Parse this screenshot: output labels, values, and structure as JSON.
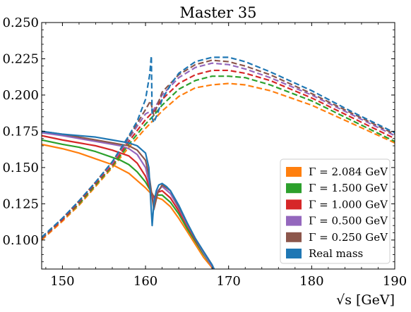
{
  "chart_data": {
    "type": "line",
    "title": "Master 35",
    "xlabel": "√s [GeV]",
    "ylabel": "",
    "xlim": [
      147.5,
      190
    ],
    "ylim": [
      0.08,
      0.25
    ],
    "grid": false,
    "legend_position": "bottom-right",
    "xticks": [
      150,
      160,
      170,
      180,
      190
    ],
    "xtick_labels": [
      "150",
      "160",
      "170",
      "180",
      "190"
    ],
    "yticks": [
      0.1,
      0.125,
      0.15,
      0.175,
      0.2,
      0.225,
      0.25
    ],
    "ytick_labels": [
      "0.100",
      "0.125",
      "0.150",
      "0.175",
      "0.200",
      "0.225",
      "0.250"
    ],
    "legend": [
      {
        "label": "Γ = 2.084 GeV",
        "color": "#ff7f0e"
      },
      {
        "label": "Γ = 1.500 GeV",
        "color": "#2ca02c"
      },
      {
        "label": "Γ = 1.000 GeV",
        "color": "#d62728"
      },
      {
        "label": "Γ = 0.500 GeV",
        "color": "#9467bd"
      },
      {
        "label": "Γ = 0.250 GeV",
        "color": "#8c564b"
      },
      {
        "label": "Real mass",
        "color": "#1f77b4"
      }
    ],
    "series": [
      {
        "name": "Γ = 2.084 GeV",
        "part": "solid",
        "color": "#ff7f0e",
        "style": "solid",
        "x": [
          147.5,
          150,
          152,
          154,
          156,
          157,
          158,
          159,
          160,
          160.5,
          161,
          161.5,
          162,
          163,
          164,
          165,
          166,
          167,
          168,
          168.5
        ],
        "y": [
          0.166,
          0.163,
          0.16,
          0.156,
          0.152,
          0.149,
          0.146,
          0.141,
          0.136,
          0.133,
          0.13,
          0.129,
          0.128,
          0.123,
          0.115,
          0.106,
          0.097,
          0.088,
          0.081,
          0.077
        ]
      },
      {
        "name": "Γ = 2.084 GeV",
        "part": "dashed",
        "color": "#ff7f0e",
        "style": "dashed",
        "x": [
          147.5,
          150,
          152,
          154,
          156,
          158,
          160,
          161,
          162,
          164,
          166,
          168,
          170,
          172,
          175,
          180,
          185,
          190
        ],
        "y": [
          0.1,
          0.113,
          0.124,
          0.137,
          0.15,
          0.164,
          0.177,
          0.183,
          0.189,
          0.199,
          0.205,
          0.207,
          0.208,
          0.207,
          0.203,
          0.193,
          0.18,
          0.167
        ]
      },
      {
        "name": "Γ = 1.500 GeV",
        "part": "solid",
        "color": "#2ca02c",
        "style": "solid",
        "x": [
          147.5,
          150,
          152,
          154,
          156,
          157,
          158,
          159,
          160,
          160.5,
          161,
          161.5,
          162,
          163,
          164,
          165,
          166,
          167,
          168,
          168.5
        ],
        "y": [
          0.169,
          0.166,
          0.164,
          0.161,
          0.157,
          0.155,
          0.152,
          0.147,
          0.14,
          0.135,
          0.13,
          0.131,
          0.131,
          0.126,
          0.118,
          0.108,
          0.099,
          0.09,
          0.082,
          0.077
        ]
      },
      {
        "name": "Γ = 1.500 GeV",
        "part": "dashed",
        "color": "#2ca02c",
        "style": "dashed",
        "x": [
          147.5,
          150,
          152,
          154,
          156,
          158,
          160,
          161,
          162,
          164,
          166,
          168,
          170,
          172,
          175,
          180,
          185,
          190
        ],
        "y": [
          0.101,
          0.114,
          0.125,
          0.138,
          0.151,
          0.166,
          0.18,
          0.186,
          0.193,
          0.204,
          0.21,
          0.213,
          0.213,
          0.212,
          0.207,
          0.196,
          0.182,
          0.168
        ]
      },
      {
        "name": "Γ = 1.000 GeV",
        "part": "solid",
        "color": "#d62728",
        "style": "solid",
        "x": [
          147.5,
          150,
          152,
          154,
          156,
          157,
          158,
          159,
          160,
          160.5,
          161,
          161.5,
          162,
          163,
          164,
          165,
          166,
          167,
          168,
          168.5
        ],
        "y": [
          0.172,
          0.169,
          0.167,
          0.165,
          0.162,
          0.16,
          0.158,
          0.153,
          0.144,
          0.136,
          0.129,
          0.133,
          0.134,
          0.129,
          0.12,
          0.11,
          0.1,
          0.091,
          0.082,
          0.077
        ]
      },
      {
        "name": "Γ = 1.000 GeV",
        "part": "dashed",
        "color": "#d62728",
        "style": "dashed",
        "x": [
          147.5,
          150,
          152,
          154,
          156,
          158,
          160,
          161,
          162,
          164,
          166,
          168,
          170,
          172,
          175,
          180,
          185,
          190
        ],
        "y": [
          0.101,
          0.114,
          0.126,
          0.139,
          0.152,
          0.168,
          0.183,
          0.189,
          0.197,
          0.208,
          0.214,
          0.217,
          0.217,
          0.215,
          0.21,
          0.198,
          0.184,
          0.17
        ]
      },
      {
        "name": "Γ = 0.500 GeV",
        "part": "solid",
        "color": "#9467bd",
        "style": "solid",
        "x": [
          147.5,
          150,
          152,
          154,
          156,
          157,
          158,
          159,
          160,
          160.5,
          161,
          161.5,
          162,
          163,
          164,
          165,
          166,
          167,
          168,
          168.5
        ],
        "y": [
          0.174,
          0.172,
          0.17,
          0.168,
          0.166,
          0.165,
          0.163,
          0.159,
          0.15,
          0.138,
          0.126,
          0.134,
          0.137,
          0.132,
          0.122,
          0.111,
          0.101,
          0.091,
          0.082,
          0.077
        ]
      },
      {
        "name": "Γ = 0.500 GeV",
        "part": "dashed",
        "color": "#9467bd",
        "style": "dashed",
        "x": [
          147.5,
          150,
          152,
          154,
          156,
          158,
          160,
          161,
          162,
          164,
          166,
          168,
          170,
          172,
          175,
          180,
          185,
          190
        ],
        "y": [
          0.101,
          0.115,
          0.127,
          0.14,
          0.153,
          0.17,
          0.187,
          0.19,
          0.2,
          0.212,
          0.219,
          0.222,
          0.221,
          0.218,
          0.212,
          0.2,
          0.186,
          0.172
        ]
      },
      {
        "name": "Γ = 0.250 GeV",
        "part": "solid",
        "color": "#8c564b",
        "style": "solid",
        "x": [
          147.5,
          150,
          152,
          154,
          156,
          157,
          158,
          159,
          160,
          160.5,
          161,
          161.5,
          162,
          163,
          164,
          165,
          166,
          167,
          168,
          168.5
        ],
        "y": [
          0.175,
          0.173,
          0.171,
          0.169,
          0.167,
          0.166,
          0.165,
          0.162,
          0.155,
          0.142,
          0.121,
          0.133,
          0.138,
          0.134,
          0.123,
          0.112,
          0.101,
          0.092,
          0.083,
          0.077
        ]
      },
      {
        "name": "Γ = 0.250 GeV",
        "part": "dashed",
        "color": "#8c564b",
        "style": "dashed",
        "x": [
          147.5,
          150,
          152,
          154,
          156,
          158,
          160,
          160.6,
          161,
          162,
          164,
          166,
          168,
          170,
          172,
          175,
          180,
          185,
          190
        ],
        "y": [
          0.101,
          0.115,
          0.127,
          0.14,
          0.154,
          0.171,
          0.19,
          0.196,
          0.186,
          0.202,
          0.214,
          0.221,
          0.224,
          0.223,
          0.22,
          0.214,
          0.201,
          0.187,
          0.173
        ]
      },
      {
        "name": "Real mass",
        "part": "solid",
        "color": "#1f77b4",
        "style": "solid",
        "x": [
          147.5,
          150,
          152,
          154,
          156,
          157,
          158,
          159,
          160,
          160.4,
          160.7,
          160.8,
          161,
          161.3,
          161.6,
          162,
          162.5,
          163,
          164,
          165,
          166,
          167,
          168,
          168.5
        ],
        "y": [
          0.175,
          0.173,
          0.172,
          0.171,
          0.169,
          0.168,
          0.167,
          0.165,
          0.16,
          0.15,
          0.12,
          0.11,
          0.125,
          0.134,
          0.138,
          0.139,
          0.137,
          0.134,
          0.124,
          0.112,
          0.101,
          0.092,
          0.083,
          0.077
        ]
      },
      {
        "name": "Real mass",
        "part": "dashed",
        "color": "#1f77b4",
        "style": "dashed",
        "x": [
          147.5,
          150,
          152,
          154,
          156,
          158,
          159,
          160,
          160.5,
          160.7,
          160.8,
          161,
          161.5,
          162,
          163,
          164,
          166,
          168,
          170,
          172,
          175,
          180,
          185,
          190
        ],
        "y": [
          0.102,
          0.115,
          0.127,
          0.14,
          0.154,
          0.172,
          0.182,
          0.197,
          0.214,
          0.227,
          0.184,
          0.181,
          0.188,
          0.197,
          0.207,
          0.215,
          0.223,
          0.226,
          0.226,
          0.223,
          0.216,
          0.203,
          0.188,
          0.174
        ]
      }
    ]
  }
}
